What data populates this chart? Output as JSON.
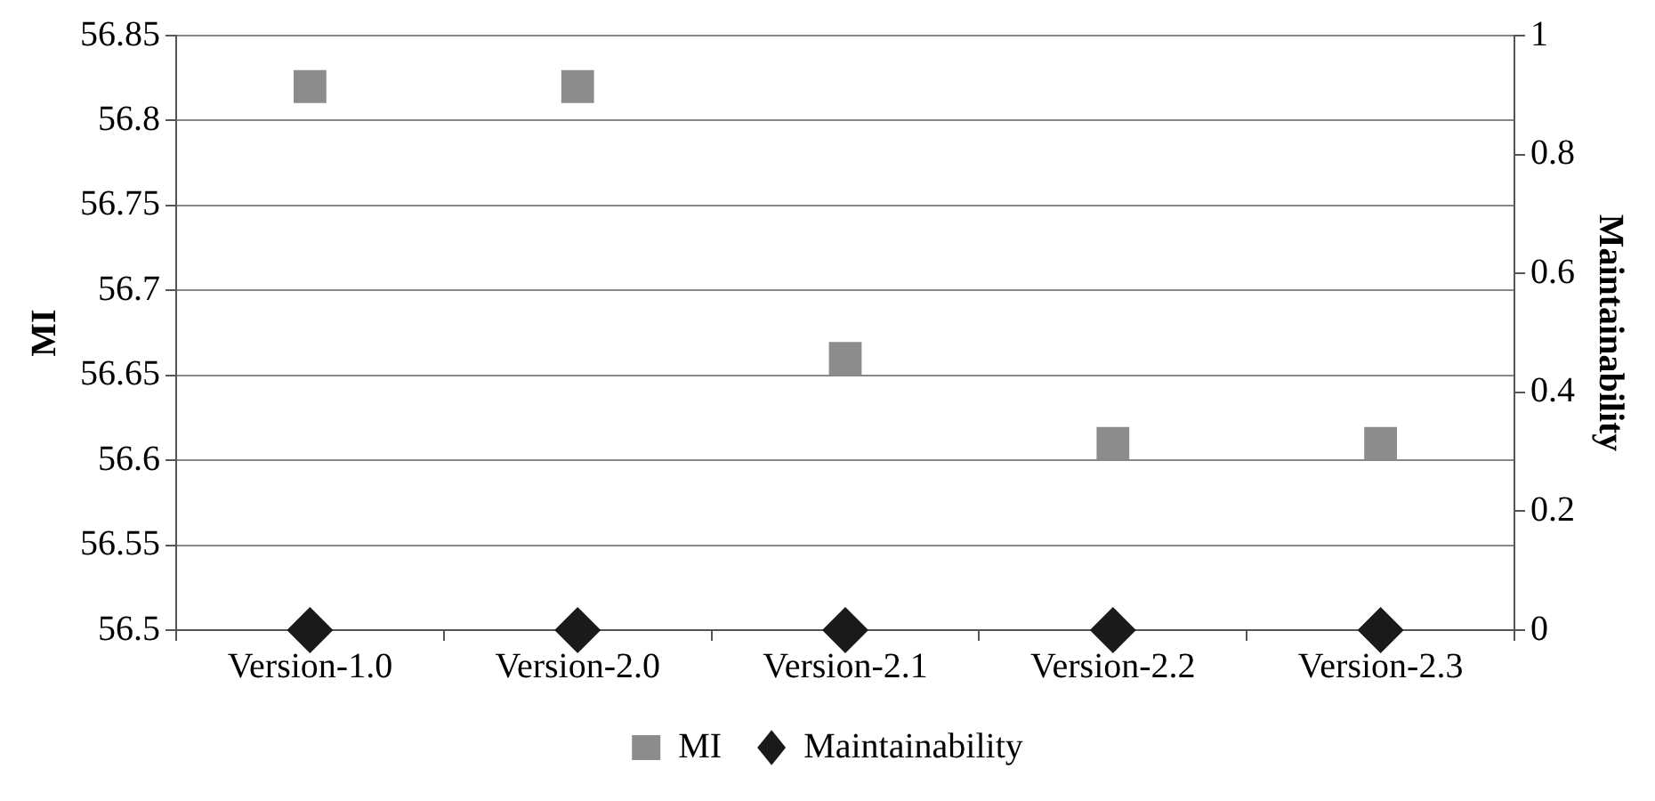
{
  "chart_data": {
    "type": "scatter",
    "ylabel": "MI",
    "y2label": "Maintainability",
    "categories": [
      "Version-1.0",
      "Version-2.0",
      "Version-2.1",
      "Version-2.2",
      "Version-2.3"
    ],
    "series": [
      {
        "name": "MI",
        "color": "#8c8c8c",
        "marker": "square",
        "values": [
          56.82,
          56.82,
          56.66,
          56.61,
          56.61
        ]
      },
      {
        "name": "Maintainability",
        "color": "#1a1a1a",
        "marker": "diamond",
        "axis": "y2",
        "values": [
          0,
          0,
          0,
          0,
          0
        ]
      }
    ],
    "ylim": [
      56.5,
      56.85
    ],
    "yticks": [
      56.5,
      56.55,
      56.6,
      56.65,
      56.7,
      56.75,
      56.8,
      56.85
    ],
    "y2lim": [
      0,
      1
    ],
    "y2ticks": [
      0,
      0.2,
      0.4,
      0.6,
      0.8,
      1
    ],
    "grid": "y",
    "legend": "bottom"
  }
}
